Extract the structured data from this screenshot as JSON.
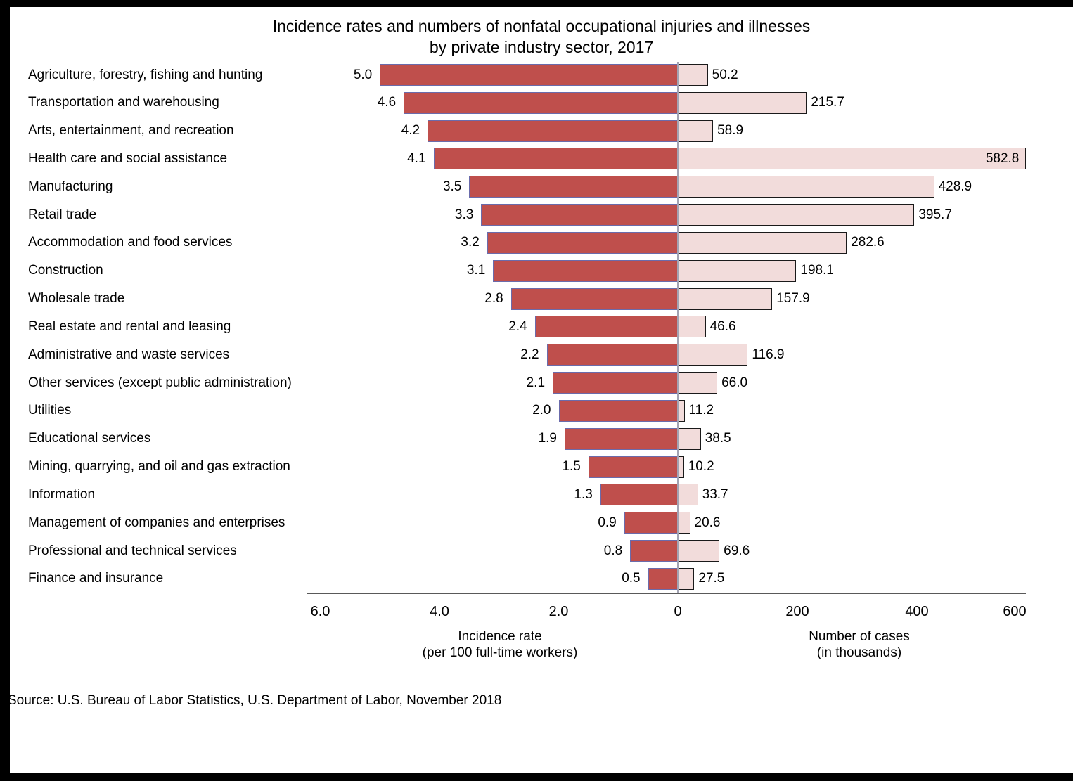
{
  "title": {
    "line1": "Incidence rates and numbers of nonfatal occupational injuries and illnesses",
    "line2": "by private industry sector, 2017"
  },
  "chart_data": {
    "type": "bar",
    "orientation": "bidirectional-horizontal",
    "title": "Incidence rates and numbers of nonfatal occupational injuries and illnesses by private industry sector, 2017",
    "categories": [
      "Agriculture, forestry, fishing and hunting",
      "Transportation and warehousing",
      "Arts, entertainment, and recreation",
      "Health care and social assistance",
      "Manufacturing",
      "Retail trade",
      "Accommodation and food services",
      "Construction",
      "Wholesale trade",
      "Real estate and rental and leasing",
      "Administrative and waste services",
      "Other services (except public administration)",
      "Utilities",
      "Educational services",
      "Mining, quarrying, and oil and gas extraction",
      "Information",
      "Management of companies and enterprises",
      "Professional and technical services",
      "Finance and insurance"
    ],
    "series": [
      {
        "name": "Incidence rate (per 100 full-time workers)",
        "side": "left",
        "color": "#bf4f4c",
        "values": [
          5.0,
          4.6,
          4.2,
          4.1,
          3.5,
          3.3,
          3.2,
          3.1,
          2.8,
          2.4,
          2.2,
          2.1,
          2.0,
          1.9,
          1.5,
          1.3,
          0.9,
          0.8,
          0.5
        ]
      },
      {
        "name": "Number of cases (in thousands)",
        "side": "right",
        "color": "#f2dcdb",
        "values": [
          50.2,
          215.7,
          58.9,
          582.8,
          428.9,
          395.7,
          282.6,
          198.1,
          157.9,
          46.6,
          116.9,
          66.0,
          11.2,
          38.5,
          10.2,
          33.7,
          20.6,
          69.6,
          27.5
        ]
      }
    ],
    "left_axis": {
      "title_line1": "Incidence rate",
      "title_line2": "(per 100 full-time workers)",
      "ticks": [
        "6.0",
        "4.0",
        "2.0",
        "0"
      ],
      "range": [
        0,
        6.0
      ]
    },
    "right_axis": {
      "title_line1": "Number of cases",
      "title_line2": "(in thousands)",
      "ticks": [
        "200",
        "400",
        "600"
      ],
      "range": [
        0,
        600
      ]
    },
    "grid": false,
    "legend": "none"
  },
  "source": "Source: U.S. Bureau of Labor Statistics, U.S. Department of Labor, November 2018",
  "colors": {
    "page_background": "#000000",
    "panel_background": "#ffffff",
    "rate_bar_fill": "#bf4f4c",
    "rate_bar_border": "#6b6bab",
    "cases_bar_fill": "#f2dcdb",
    "cases_bar_border": "#1a1a1a",
    "axis_line": "#595959",
    "center_line": "#a3a3b3"
  }
}
